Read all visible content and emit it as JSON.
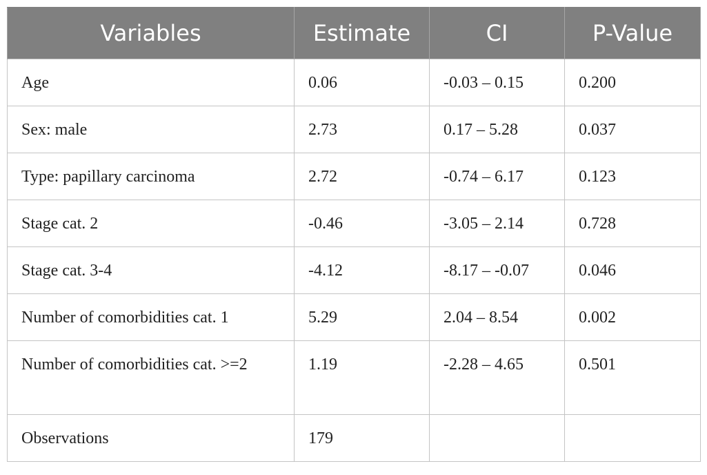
{
  "table": {
    "header": {
      "variables": "Variables",
      "estimate": "Estimate",
      "ci": "CI",
      "p_value": "P-Value"
    },
    "rows": [
      {
        "variable": "Age",
        "estimate": "0.06",
        "ci": "-0.03 – 0.15",
        "p_value": "0.200"
      },
      {
        "variable": "Sex: male",
        "estimate": "2.73",
        "ci": "0.17 – 5.28",
        "p_value": "0.037"
      },
      {
        "variable": "Type: papillary carcinoma",
        "estimate": "2.72",
        "ci": "-0.74 – 6.17",
        "p_value": "0.123"
      },
      {
        "variable": "Stage cat. 2",
        "estimate": "-0.46",
        "ci": "-3.05 – 2.14",
        "p_value": "0.728"
      },
      {
        "variable": "Stage cat. 3-4",
        "estimate": "-4.12",
        "ci": "-8.17 – -0.07",
        "p_value": "0.046"
      },
      {
        "variable": "Number of comorbidities cat. 1",
        "estimate": "5.29",
        "ci": "2.04 – 8.54",
        "p_value": "0.002"
      },
      {
        "variable": "Number of comorbidities cat. >=2",
        "estimate": "1.19",
        "ci": "-2.28 – 4.65",
        "p_value": "0.501"
      }
    ],
    "observations": {
      "label": "Observations",
      "value": "179"
    }
  }
}
